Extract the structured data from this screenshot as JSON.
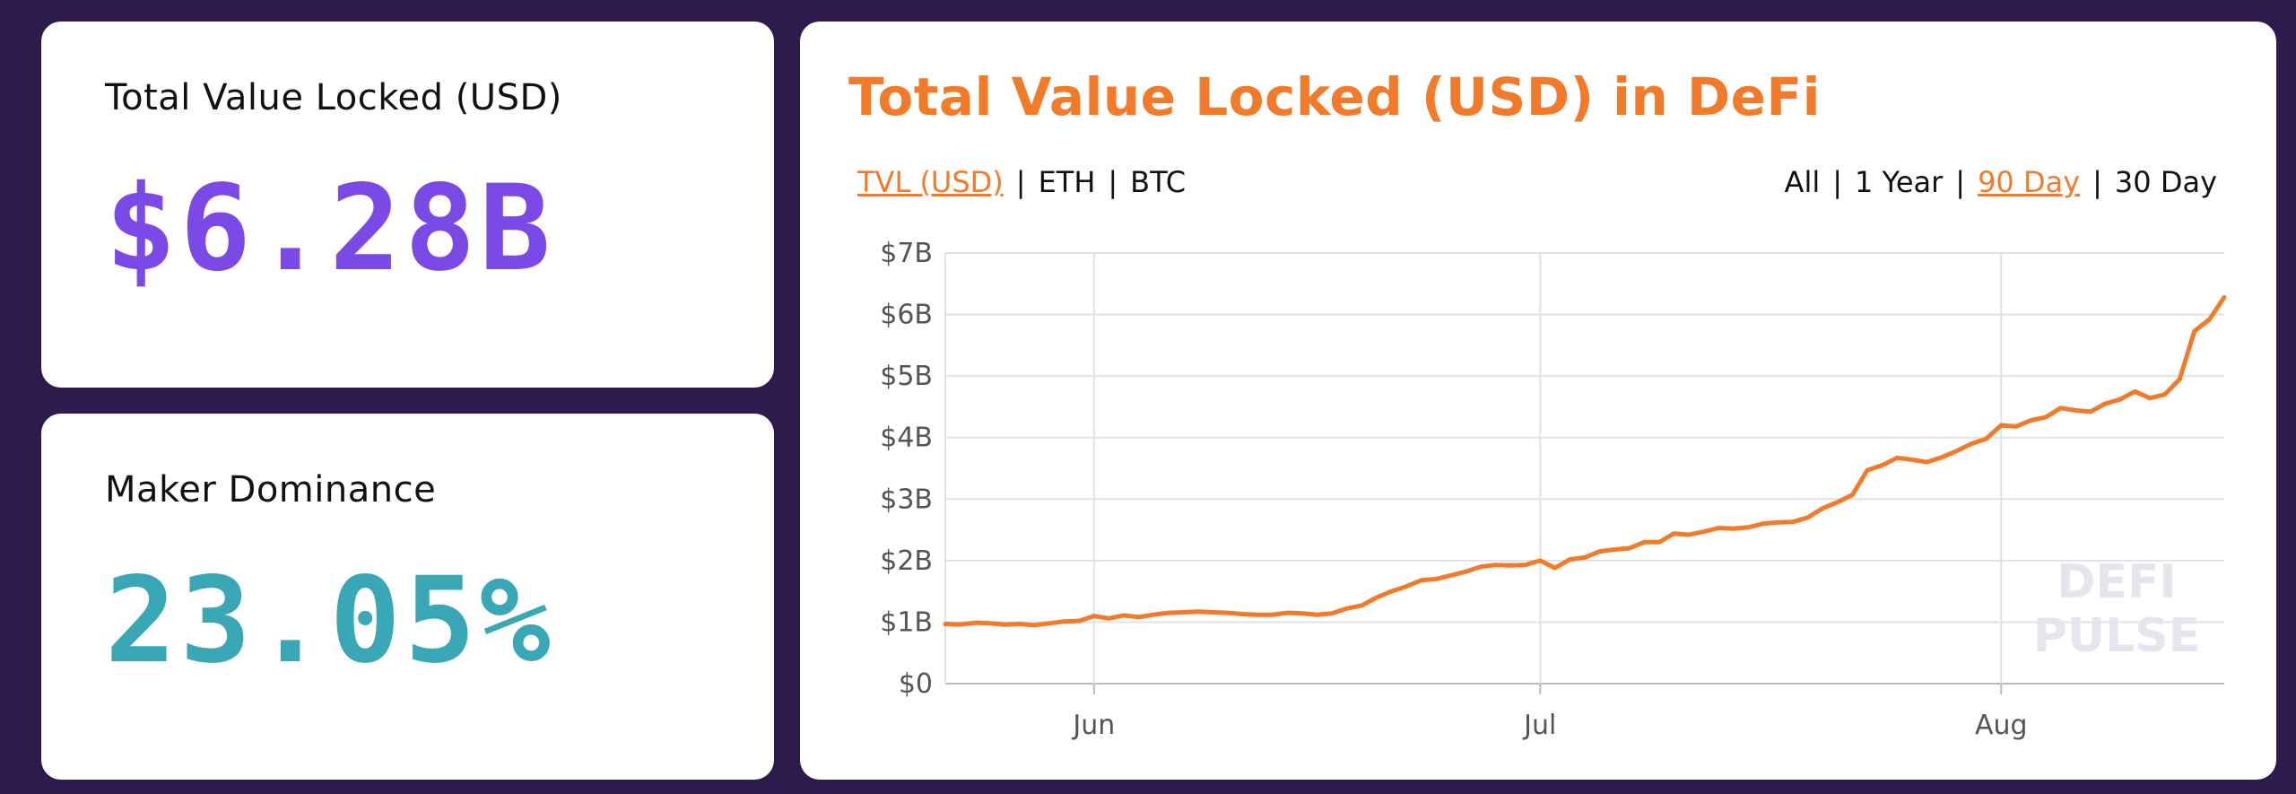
{
  "tvl_card": {
    "label": "Total Value Locked (USD)",
    "value": "$6.28B"
  },
  "maker_card": {
    "label": "Maker Dominance",
    "value": "23.05%"
  },
  "chart_panel": {
    "title": "Total Value Locked (USD) in DeFi",
    "unit_toggle": [
      {
        "label": "TVL (USD)",
        "active": true
      },
      {
        "label": "ETH",
        "active": false
      },
      {
        "label": "BTC",
        "active": false
      }
    ],
    "range_toggle": [
      {
        "label": "All",
        "active": false
      },
      {
        "label": "1 Year",
        "active": false
      },
      {
        "label": "90 Day",
        "active": true
      },
      {
        "label": "30 Day",
        "active": false
      }
    ],
    "watermark": [
      "DEFI",
      "PULSE"
    ]
  },
  "colors": {
    "background": "#2d1b4e",
    "accent_orange": "#f27b2b",
    "tvl_purple": "#7b4ae6",
    "maker_teal": "#3aa7b6"
  },
  "chart_data": {
    "type": "line",
    "title": "Total Value Locked (USD) in DeFi",
    "xlabel": "",
    "ylabel": "",
    "ylim": [
      0,
      7
    ],
    "y_ticks": [
      "$0",
      "$1B",
      "$2B",
      "$3B",
      "$4B",
      "$5B",
      "$6B",
      "$7B"
    ],
    "x_ticks": [
      {
        "label": "Jun",
        "day": 10
      },
      {
        "label": "Jul",
        "day": 40
      },
      {
        "label": "Aug",
        "day": 71
      }
    ],
    "grid": true,
    "series": [
      {
        "values": [
          0.97,
          0.96,
          0.99,
          0.98,
          0.96,
          0.97,
          0.95,
          0.98,
          1.01,
          1.02,
          1.1,
          1.06,
          1.11,
          1.08,
          1.12,
          1.15,
          1.16,
          1.17,
          1.16,
          1.15,
          1.13,
          1.12,
          1.12,
          1.15,
          1.14,
          1.12,
          1.14,
          1.22,
          1.27,
          1.4,
          1.5,
          1.58,
          1.68,
          1.7,
          1.76,
          1.82,
          1.9,
          1.93,
          1.92,
          1.93,
          2.0,
          1.88,
          2.02,
          2.05,
          2.15,
          2.18,
          2.2,
          2.3,
          2.3,
          2.44,
          2.42,
          2.47,
          2.53,
          2.52,
          2.54,
          2.6,
          2.62,
          2.63,
          2.7,
          2.85,
          2.95,
          3.07,
          3.47,
          3.55,
          3.67,
          3.64,
          3.6,
          3.68,
          3.78,
          3.9,
          3.98,
          4.2,
          4.18,
          4.28,
          4.33,
          4.48,
          4.44,
          4.42,
          4.55,
          4.62,
          4.75,
          4.64,
          4.7,
          4.95,
          5.73,
          5.92,
          6.28
        ]
      }
    ]
  }
}
